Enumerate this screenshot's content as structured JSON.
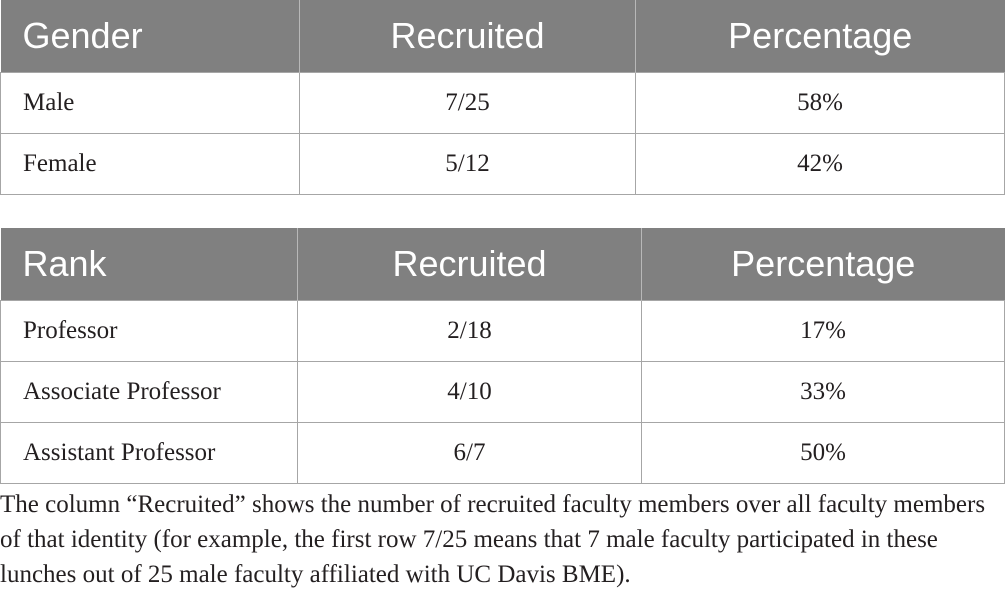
{
  "gender_table": {
    "headers": [
      "Gender",
      "Recruited",
      "Percentage"
    ],
    "rows": [
      [
        "Male",
        "7/25",
        "58%"
      ],
      [
        "Female",
        "5/12",
        "42%"
      ]
    ]
  },
  "rank_table": {
    "headers": [
      "Rank",
      "Recruited",
      "Percentage"
    ],
    "rows": [
      [
        "Professor",
        "2/18",
        "17%"
      ],
      [
        "Associate Professor",
        "4/10",
        "33%"
      ],
      [
        "Assistant Professor",
        "6/7",
        "50%"
      ]
    ]
  },
  "footnote": "The column “Recruited” shows the number of recruited faculty members over all faculty members of that identity (for example, the first row 7/25 means that 7 male faculty participated in these lunches out of 25 male faculty affiliated with UC Davis BME)."
}
